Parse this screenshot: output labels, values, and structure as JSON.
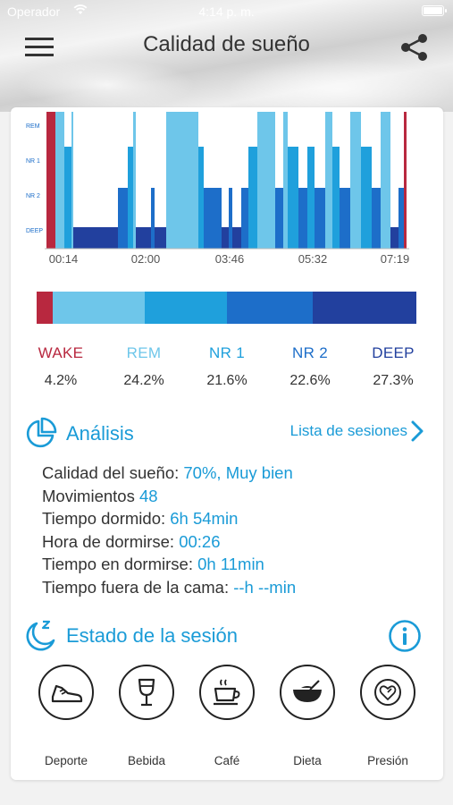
{
  "status_bar": {
    "carrier": "Operador",
    "time": "4:14 p. m."
  },
  "header": {
    "title": "Calidad de sueño",
    "menu_icon": "hamburger-menu-icon",
    "share_icon": "share-icon"
  },
  "hypnogram": {
    "y_labels": [
      "REM",
      "NR 1",
      "NR 2",
      "DEEP"
    ],
    "x_labels": [
      "00:14",
      "02:00",
      "03:46",
      "05:32",
      "07:19"
    ]
  },
  "chart_data": {
    "type": "bar",
    "title": "",
    "categories": [
      "WAKE",
      "REM",
      "NR 1",
      "NR 2",
      "DEEP"
    ],
    "values": [
      4.2,
      24.2,
      21.6,
      22.6,
      27.3
    ],
    "unit": "%",
    "colors": [
      "#b8283f",
      "#6ec6ea",
      "#1fa0dc",
      "#1d6ec9",
      "#22409e"
    ]
  },
  "stages": [
    {
      "label": "WAKE",
      "pct": "4.2%",
      "color": "#b8283f"
    },
    {
      "label": "REM",
      "pct": "24.2%",
      "color": "#6ec6ea"
    },
    {
      "label": "NR 1",
      "pct": "21.6%",
      "color": "#1fa0dc"
    },
    {
      "label": "NR 2",
      "pct": "22.6%",
      "color": "#1d6ec9"
    },
    {
      "label": "DEEP",
      "pct": "27.3%",
      "color": "#22409e"
    }
  ],
  "analysis": {
    "title": "Análisis",
    "sessions_link": "Lista de sesiones",
    "rows": [
      {
        "label": "Calidad del sueño:",
        "value": "70%, Muy bien"
      },
      {
        "label": "Movimientos",
        "value": "48"
      },
      {
        "label": "Tiempo dormido:",
        "value": "6h 54min"
      },
      {
        "label": "Hora de dormirse:",
        "value": "00:26"
      },
      {
        "label": "Tiempo en dormirse:",
        "value": "0h 11min"
      },
      {
        "label": "Tiempo fuera de la cama:",
        "value": "--h --min"
      }
    ]
  },
  "session_state": {
    "title": "Estado de la sesión",
    "items": [
      {
        "label": "Deporte",
        "icon": "shoe-icon"
      },
      {
        "label": "Bebida",
        "icon": "wine-glass-icon"
      },
      {
        "label": "Café",
        "icon": "coffee-cup-icon"
      },
      {
        "label": "Dieta",
        "icon": "bowl-icon"
      },
      {
        "label": "Presión",
        "icon": "heart-gauge-icon"
      }
    ]
  },
  "colors": {
    "accent": "#1a9bd7",
    "wake": "#b8283f",
    "rem": "#6ec6ea",
    "nr1": "#1fa0dc",
    "nr2": "#1d6ec9",
    "deep": "#22409e"
  }
}
